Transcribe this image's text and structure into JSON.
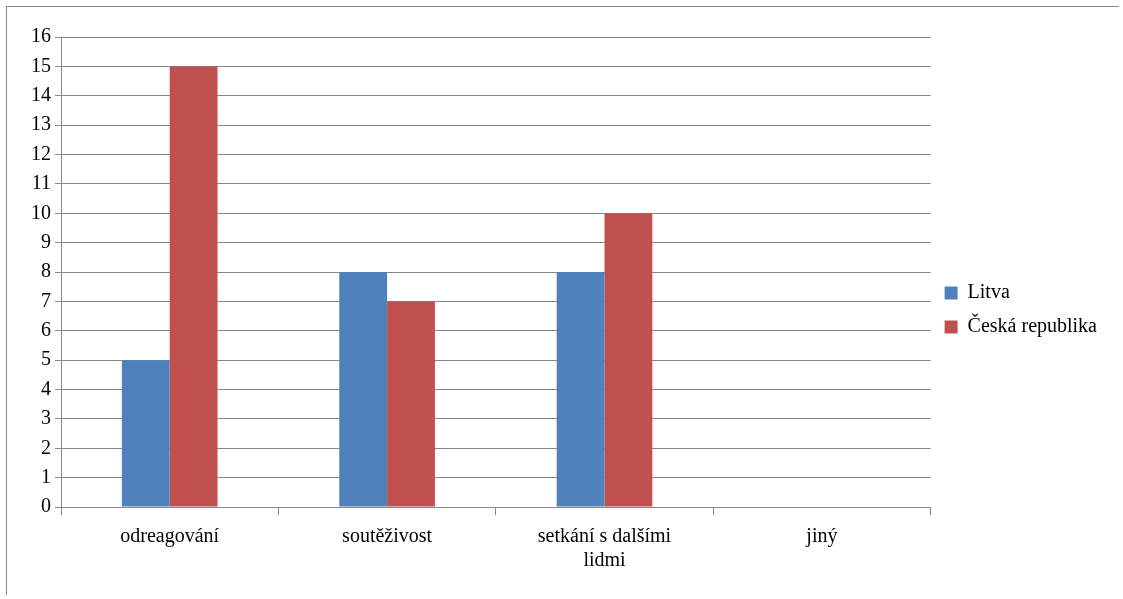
{
  "chart_data": {
    "type": "bar",
    "categories": [
      "odreagování",
      "soutěživost",
      "setkání s dalšími lidmi",
      "jiný"
    ],
    "series": [
      {
        "name": "Litva",
        "color": "#4f81bd",
        "values": [
          5,
          8,
          8,
          0
        ]
      },
      {
        "name": "Česká republika",
        "color": "#c0504d",
        "values": [
          15,
          7,
          10,
          0
        ]
      }
    ],
    "ylim": [
      0,
      16
    ],
    "yticks": [
      0,
      1,
      2,
      3,
      4,
      5,
      6,
      7,
      8,
      9,
      10,
      11,
      12,
      13,
      14,
      15,
      16
    ],
    "grid": "y",
    "legend": "right"
  }
}
